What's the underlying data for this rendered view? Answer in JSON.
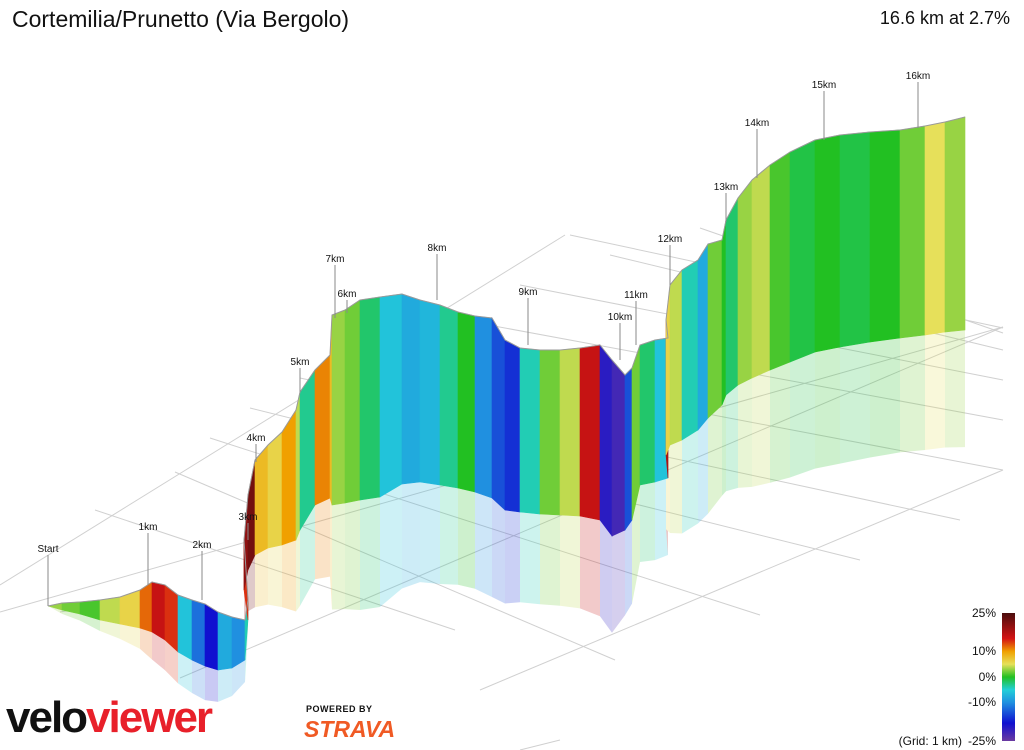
{
  "header": {
    "title": "Cortemilia/Prunetto (Via Bergolo)",
    "summary": "16.6 km at 2.7%"
  },
  "chart_data": {
    "type": "area",
    "projection": "3d-ribbon",
    "distance_km": 16.6,
    "average_grade_pct": 2.7,
    "km_markers": [
      "Start",
      "1km",
      "2km",
      "3km",
      "4km",
      "5km",
      "6km",
      "7km",
      "8km",
      "9km",
      "10km",
      "11km",
      "12km",
      "13km",
      "14km",
      "15km",
      "16km"
    ],
    "gradient_legend": {
      "stops": [
        {
          "grade": 25,
          "color": "#4a0d0d"
        },
        {
          "grade": 15,
          "color": "#d41414"
        },
        {
          "grade": 10,
          "color": "#f0a000"
        },
        {
          "grade": 5,
          "color": "#e6e05a"
        },
        {
          "grade": 0,
          "color": "#22c022"
        },
        {
          "grade": -5,
          "color": "#22d0d8"
        },
        {
          "grade": -10,
          "color": "#2090e0"
        },
        {
          "grade": -18,
          "color": "#1010d0"
        },
        {
          "grade": -25,
          "color": "#6a3aa0"
        }
      ],
      "labels": [
        "25%",
        "10%",
        "0%",
        "-10%",
        "-25%"
      ],
      "grid_note": "(Grid: 1 km)"
    },
    "grid": true
  },
  "branding": {
    "logo_part1": "velo",
    "logo_part2": "viewer",
    "powered_by": "POWERED BY",
    "strava": "STRAVA"
  }
}
